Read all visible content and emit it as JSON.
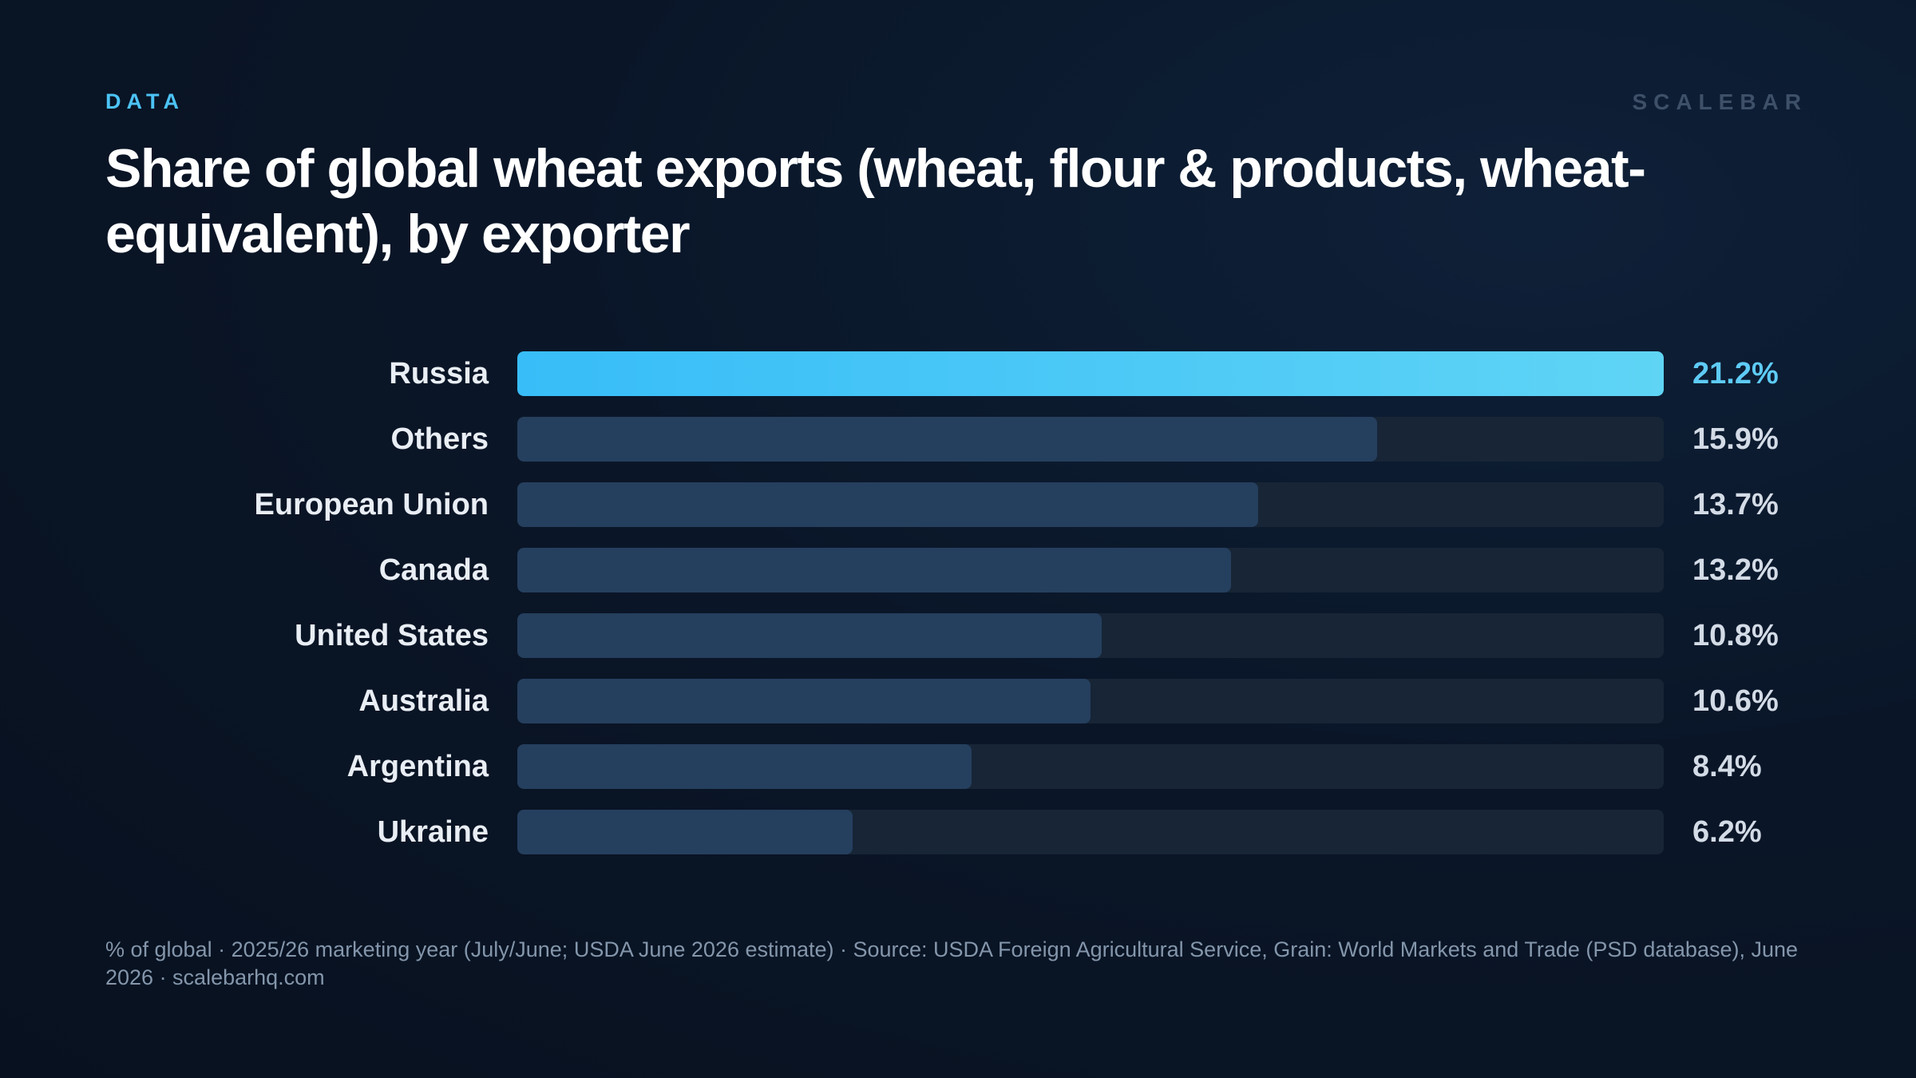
{
  "header": {
    "kicker": "DATA",
    "brand": "SCALEBAR"
  },
  "footnote": "% of global · 2025/26 marketing year (July/June; USDA June 2026 estimate) · Source: USDA Foreign Agricultural Service, Grain: World Markets and Trade (PSD database), June 2026 · scalebarhq.com",
  "colors": {
    "accent": "#38bdf8",
    "bar": "#253f5e",
    "track": "#172536",
    "background": "#0a1628"
  },
  "chart_data": {
    "type": "bar",
    "orientation": "horizontal",
    "title": "Share of global wheat exports (wheat, flour & products, wheat-equivalent), by exporter",
    "categories": [
      "Russia",
      "Others",
      "European Union",
      "Canada",
      "United States",
      "Australia",
      "Argentina",
      "Ukraine"
    ],
    "values": [
      21.2,
      15.9,
      13.7,
      13.2,
      10.8,
      10.6,
      8.4,
      6.2
    ],
    "value_labels": [
      "21.2%",
      "15.9%",
      "13.7%",
      "13.2%",
      "10.8%",
      "10.6%",
      "8.4%",
      "6.2%"
    ],
    "unit": "%",
    "xlim": [
      0,
      21.2
    ],
    "highlight": "Russia",
    "grid": false,
    "legend": "none"
  }
}
